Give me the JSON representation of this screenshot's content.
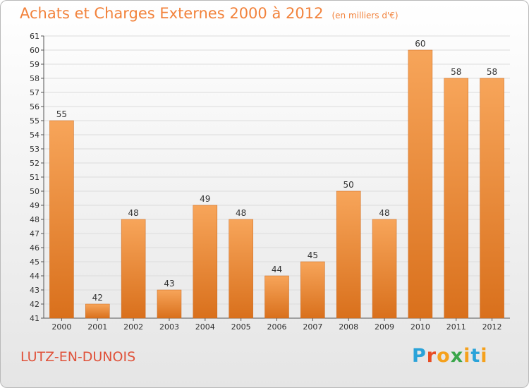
{
  "header": {
    "title": "Achats et Charges Externes 2000 à 2012",
    "subtitle": "(en milliers d'€)"
  },
  "footer": {
    "commune": "LUTZ-EN-DUNOIS",
    "brand": "Proxiti"
  },
  "colors": {
    "bar_light": "#f7a55a",
    "bar_dark": "#d9701c",
    "title": "#f2823b",
    "commune": "#e0523a"
  },
  "chart_data": {
    "type": "bar",
    "title": "Achats et Charges Externes 2000 à 2012",
    "subtitle": "(en milliers d'€)",
    "xlabel": "",
    "ylabel": "",
    "categories": [
      "2000",
      "2001",
      "2002",
      "2003",
      "2004",
      "2005",
      "2006",
      "2007",
      "2008",
      "2009",
      "2010",
      "2011",
      "2012"
    ],
    "values": [
      55,
      42,
      48,
      43,
      49,
      48,
      44,
      45,
      50,
      48,
      60,
      58,
      58
    ],
    "ylim": [
      41,
      61
    ],
    "yticks": [
      41,
      42,
      43,
      44,
      45,
      46,
      47,
      48,
      49,
      50,
      51,
      52,
      53,
      54,
      55,
      56,
      57,
      58,
      59,
      60,
      61
    ],
    "grid": true,
    "legend": "none"
  }
}
